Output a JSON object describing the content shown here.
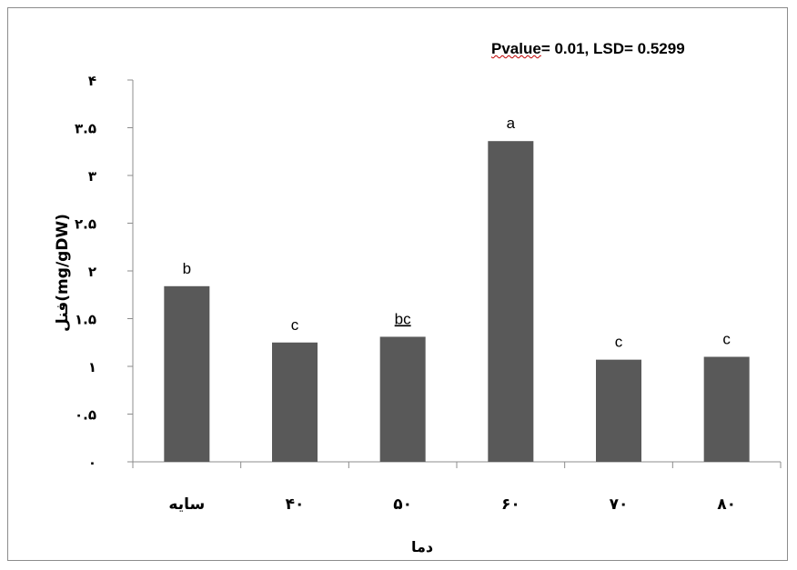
{
  "chart_data": {
    "type": "bar",
    "annotation": {
      "pvalue_word": "Pvalue",
      "rest": "= 0.01, LSD= 0.5299"
    },
    "ylabel": "فنل(mg/gDW)",
    "xlabel": "دما",
    "categories": [
      "سایه",
      "۴۰",
      "۵۰",
      "۶۰",
      "۷۰",
      "۸۰"
    ],
    "values": [
      1.84,
      1.25,
      1.31,
      3.36,
      1.07,
      1.1
    ],
    "letters": [
      "b",
      "c",
      "bc",
      "a",
      "c",
      "c"
    ],
    "ylim": [
      0,
      4
    ],
    "yticks": [
      {
        "value": 0,
        "label": "۰"
      },
      {
        "value": 0.5,
        "label": "۰.۵"
      },
      {
        "value": 1,
        "label": "۱"
      },
      {
        "value": 1.5,
        "label": "۱.۵"
      },
      {
        "value": 2,
        "label": "۲"
      },
      {
        "value": 2.5,
        "label": "۲.۵"
      },
      {
        "value": 3,
        "label": "۳"
      },
      {
        "value": 3.5,
        "label": "۳.۵"
      },
      {
        "value": 4,
        "label": "۴"
      }
    ],
    "bar_color": "#595959",
    "grid": false
  }
}
